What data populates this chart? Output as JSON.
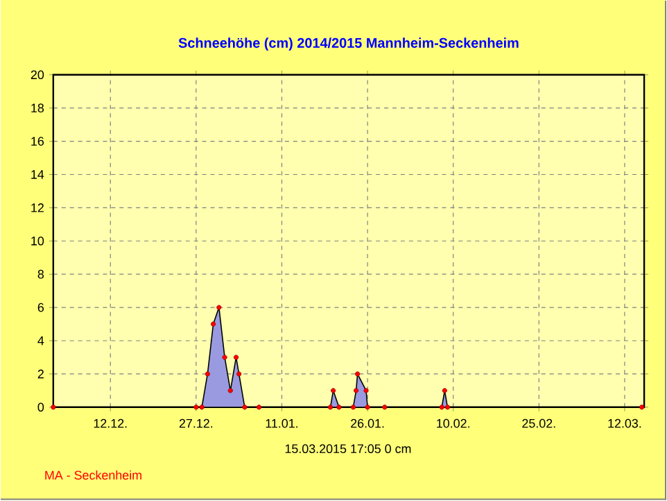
{
  "chart_data": {
    "type": "area",
    "title": "Schneehöhe (cm)  2014/2015      Mannheim-Seckenheim",
    "x": [
      "2014-12-02",
      "2014-12-27",
      "2014-12-28",
      "2014-12-29",
      "2014-12-30",
      "2014-12-31",
      "2015-01-01",
      "2015-01-02",
      "2015-01-03",
      "2015-01-03T12:00",
      "2015-01-04T12:00",
      "2015-01-07",
      "2015-01-19T12:00",
      "2015-01-20",
      "2015-01-21",
      "2015-01-23T12:00",
      "2015-01-24",
      "2015-01-24T06:00",
      "2015-01-25T18:00",
      "2015-01-26",
      "2015-01-29",
      "2015-02-08",
      "2015-02-08T12:00",
      "2015-02-09",
      "2015-03-15"
    ],
    "values": [
      0,
      0,
      0,
      2,
      5,
      6,
      3,
      1,
      3,
      2,
      0,
      0,
      0,
      1,
      0,
      0,
      1,
      2,
      1,
      0,
      0,
      0,
      1,
      0,
      0
    ],
    "color": "#9a9ae0",
    "marker": "circle",
    "xlim": [
      "2014-12-02",
      "2015-03-15T10:00"
    ],
    "xticks": [
      {
        "value": "2014-12-12",
        "label": "12.12."
      },
      {
        "value": "2014-12-27",
        "label": "27.12."
      },
      {
        "value": "2015-01-11",
        "label": "11.01."
      },
      {
        "value": "2015-01-26",
        "label": "26.01."
      },
      {
        "value": "2015-02-10",
        "label": "10.02."
      },
      {
        "value": "2015-02-25",
        "label": "25.02."
      },
      {
        "value": "2015-03-12",
        "label": "12.03."
      }
    ],
    "ylim": [
      0,
      20
    ],
    "yticks": [
      0,
      2,
      4,
      6,
      8,
      10,
      12,
      14,
      16,
      18,
      20
    ],
    "grid": true,
    "annotations": [
      "15.03.2015  17:05   0 cm",
      "MA - Seckenheim"
    ]
  }
}
